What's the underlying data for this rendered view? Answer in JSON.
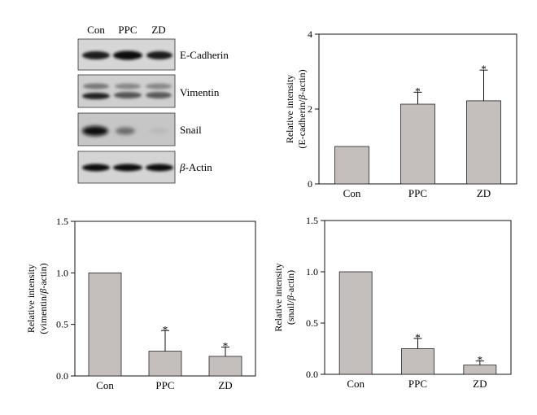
{
  "blot": {
    "lanes": [
      "Con",
      "PPC",
      "ZD"
    ],
    "bands": [
      {
        "label": "E-Cadherin"
      },
      {
        "label": "Vimentin"
      },
      {
        "label": "Snail"
      },
      {
        "label_prefix": "β",
        "label_suffix": "-Actin"
      }
    ]
  },
  "chart_data": [
    {
      "type": "bar",
      "categories": [
        "Con",
        "PPC",
        "ZD"
      ],
      "values": [
        1.0,
        2.13,
        2.22
      ],
      "errors": [
        0,
        0.32,
        0.82
      ],
      "significance": [
        "",
        "*",
        "*"
      ],
      "ylabel_line1": "Relative intensity",
      "ylabel_line2_prefix": "(E-cadherin/",
      "ylabel_line2_greek": "β",
      "ylabel_line2_suffix": "-actin)",
      "ylim": [
        0,
        4
      ],
      "yticks": [
        0,
        2,
        4
      ],
      "ytick_labels": [
        "0",
        "2",
        "4"
      ],
      "bar_color": "#c4bfbd"
    },
    {
      "type": "bar",
      "categories": [
        "Con",
        "PPC",
        "ZD"
      ],
      "values": [
        1.0,
        0.24,
        0.19
      ],
      "errors": [
        0,
        0.2,
        0.09
      ],
      "significance": [
        "",
        "*",
        "*"
      ],
      "ylabel_line1": "Relative intensity",
      "ylabel_line2_prefix": "(vimentin/",
      "ylabel_line2_greek": "β",
      "ylabel_line2_suffix": "-actin)",
      "ylim": [
        0,
        1.5
      ],
      "yticks": [
        0,
        0.5,
        1.0,
        1.5
      ],
      "ytick_labels": [
        "0.0",
        "0.5",
        "1.0",
        "1.5"
      ],
      "bar_color": "#c4bfbd"
    },
    {
      "type": "bar",
      "categories": [
        "Con",
        "PPC",
        "ZD"
      ],
      "values": [
        1.0,
        0.25,
        0.09
      ],
      "errors": [
        0,
        0.1,
        0.04
      ],
      "significance": [
        "",
        "*",
        "*"
      ],
      "ylabel_line1": "Relative intensity",
      "ylabel_line2_prefix": "(snail/",
      "ylabel_line2_greek": "β",
      "ylabel_line2_suffix": "-actin)",
      "ylim": [
        0,
        1.5
      ],
      "yticks": [
        0,
        0.5,
        1.0,
        1.5
      ],
      "ytick_labels": [
        "0.0",
        "0.5",
        "1.0",
        "1.5"
      ],
      "bar_color": "#c4bfbd"
    }
  ]
}
